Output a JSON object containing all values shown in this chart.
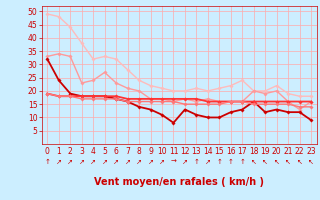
{
  "xlabel": "Vent moyen/en rafales ( km/h )",
  "background_color": "#cceeff",
  "grid_color": "#ffaaaa",
  "xlim": [
    -0.5,
    23.5
  ],
  "ylim": [
    0,
    52
  ],
  "yticks": [
    5,
    10,
    15,
    20,
    25,
    30,
    35,
    40,
    45,
    50
  ],
  "xticks": [
    0,
    1,
    2,
    3,
    4,
    5,
    6,
    7,
    8,
    9,
    10,
    11,
    12,
    13,
    14,
    15,
    16,
    17,
    18,
    19,
    20,
    21,
    22,
    23
  ],
  "series": [
    {
      "x": [
        0,
        1,
        2,
        3,
        4,
        5,
        6,
        7,
        8,
        9,
        10,
        11,
        12,
        13,
        14,
        15,
        16,
        17,
        18,
        19,
        20,
        21,
        22,
        23
      ],
      "y": [
        49,
        48,
        44,
        38,
        32,
        33,
        32,
        28,
        24,
        22,
        21,
        20,
        20,
        21,
        20,
        21,
        22,
        24,
        20,
        20,
        22,
        19,
        18,
        18
      ],
      "color": "#ffbbbb",
      "lw": 1.0,
      "marker": "D",
      "ms": 1.8
    },
    {
      "x": [
        0,
        1,
        2,
        3,
        4,
        5,
        6,
        7,
        8,
        9,
        10,
        11,
        12,
        13,
        14,
        15,
        16,
        17,
        18,
        19,
        20,
        21,
        22,
        23
      ],
      "y": [
        33,
        34,
        33,
        23,
        24,
        27,
        23,
        21,
        20,
        17,
        17,
        16,
        17,
        16,
        17,
        16,
        16,
        16,
        20,
        19,
        20,
        16,
        13,
        16
      ],
      "color": "#ff9999",
      "lw": 1.0,
      "marker": "D",
      "ms": 1.8
    },
    {
      "x": [
        0,
        1,
        2,
        3,
        4,
        5,
        6,
        7,
        8,
        9,
        10,
        11,
        12,
        13,
        14,
        15,
        16,
        17,
        18,
        19,
        20,
        21,
        22,
        23
      ],
      "y": [
        32,
        24,
        19,
        18,
        18,
        18,
        17,
        16,
        14,
        13,
        11,
        8,
        13,
        11,
        10,
        10,
        12,
        13,
        16,
        12,
        13,
        12,
        12,
        9
      ],
      "color": "#cc0000",
      "lw": 1.3,
      "marker": "D",
      "ms": 1.8
    },
    {
      "x": [
        0,
        1,
        2,
        3,
        4,
        5,
        6,
        7,
        8,
        9,
        10,
        11,
        12,
        13,
        14,
        15,
        16,
        17,
        18,
        19,
        20,
        21,
        22,
        23
      ],
      "y": [
        19,
        18,
        18,
        18,
        18,
        18,
        18,
        17,
        17,
        17,
        17,
        17,
        17,
        17,
        16,
        16,
        16,
        16,
        16,
        16,
        16,
        16,
        16,
        16
      ],
      "color": "#ff3333",
      "lw": 1.3,
      "marker": "D",
      "ms": 1.8
    },
    {
      "x": [
        0,
        1,
        2,
        3,
        4,
        5,
        6,
        7,
        8,
        9,
        10,
        11,
        12,
        13,
        14,
        15,
        16,
        17,
        18,
        19,
        20,
        21,
        22,
        23
      ],
      "y": [
        19,
        18,
        18,
        17,
        17,
        17,
        17,
        16,
        16,
        16,
        16,
        16,
        15,
        15,
        15,
        15,
        16,
        16,
        15,
        15,
        15,
        15,
        14,
        14
      ],
      "color": "#ff7777",
      "lw": 1.0,
      "marker": "D",
      "ms": 1.8
    }
  ],
  "wind_arrows": [
    "↑",
    "↗",
    "↗",
    "↗",
    "↗",
    "↗",
    "↗",
    "↗",
    "↗",
    "↗",
    "↗",
    "→",
    "↗",
    "↑",
    "↗",
    "↑",
    "↑",
    "↑",
    "↖",
    "↖",
    "↖",
    "↖",
    "↖",
    "↖"
  ],
  "xlabel_color": "#cc0000",
  "xlabel_fontsize": 7,
  "tick_color": "#cc0000",
  "tick_fontsize": 5.5
}
